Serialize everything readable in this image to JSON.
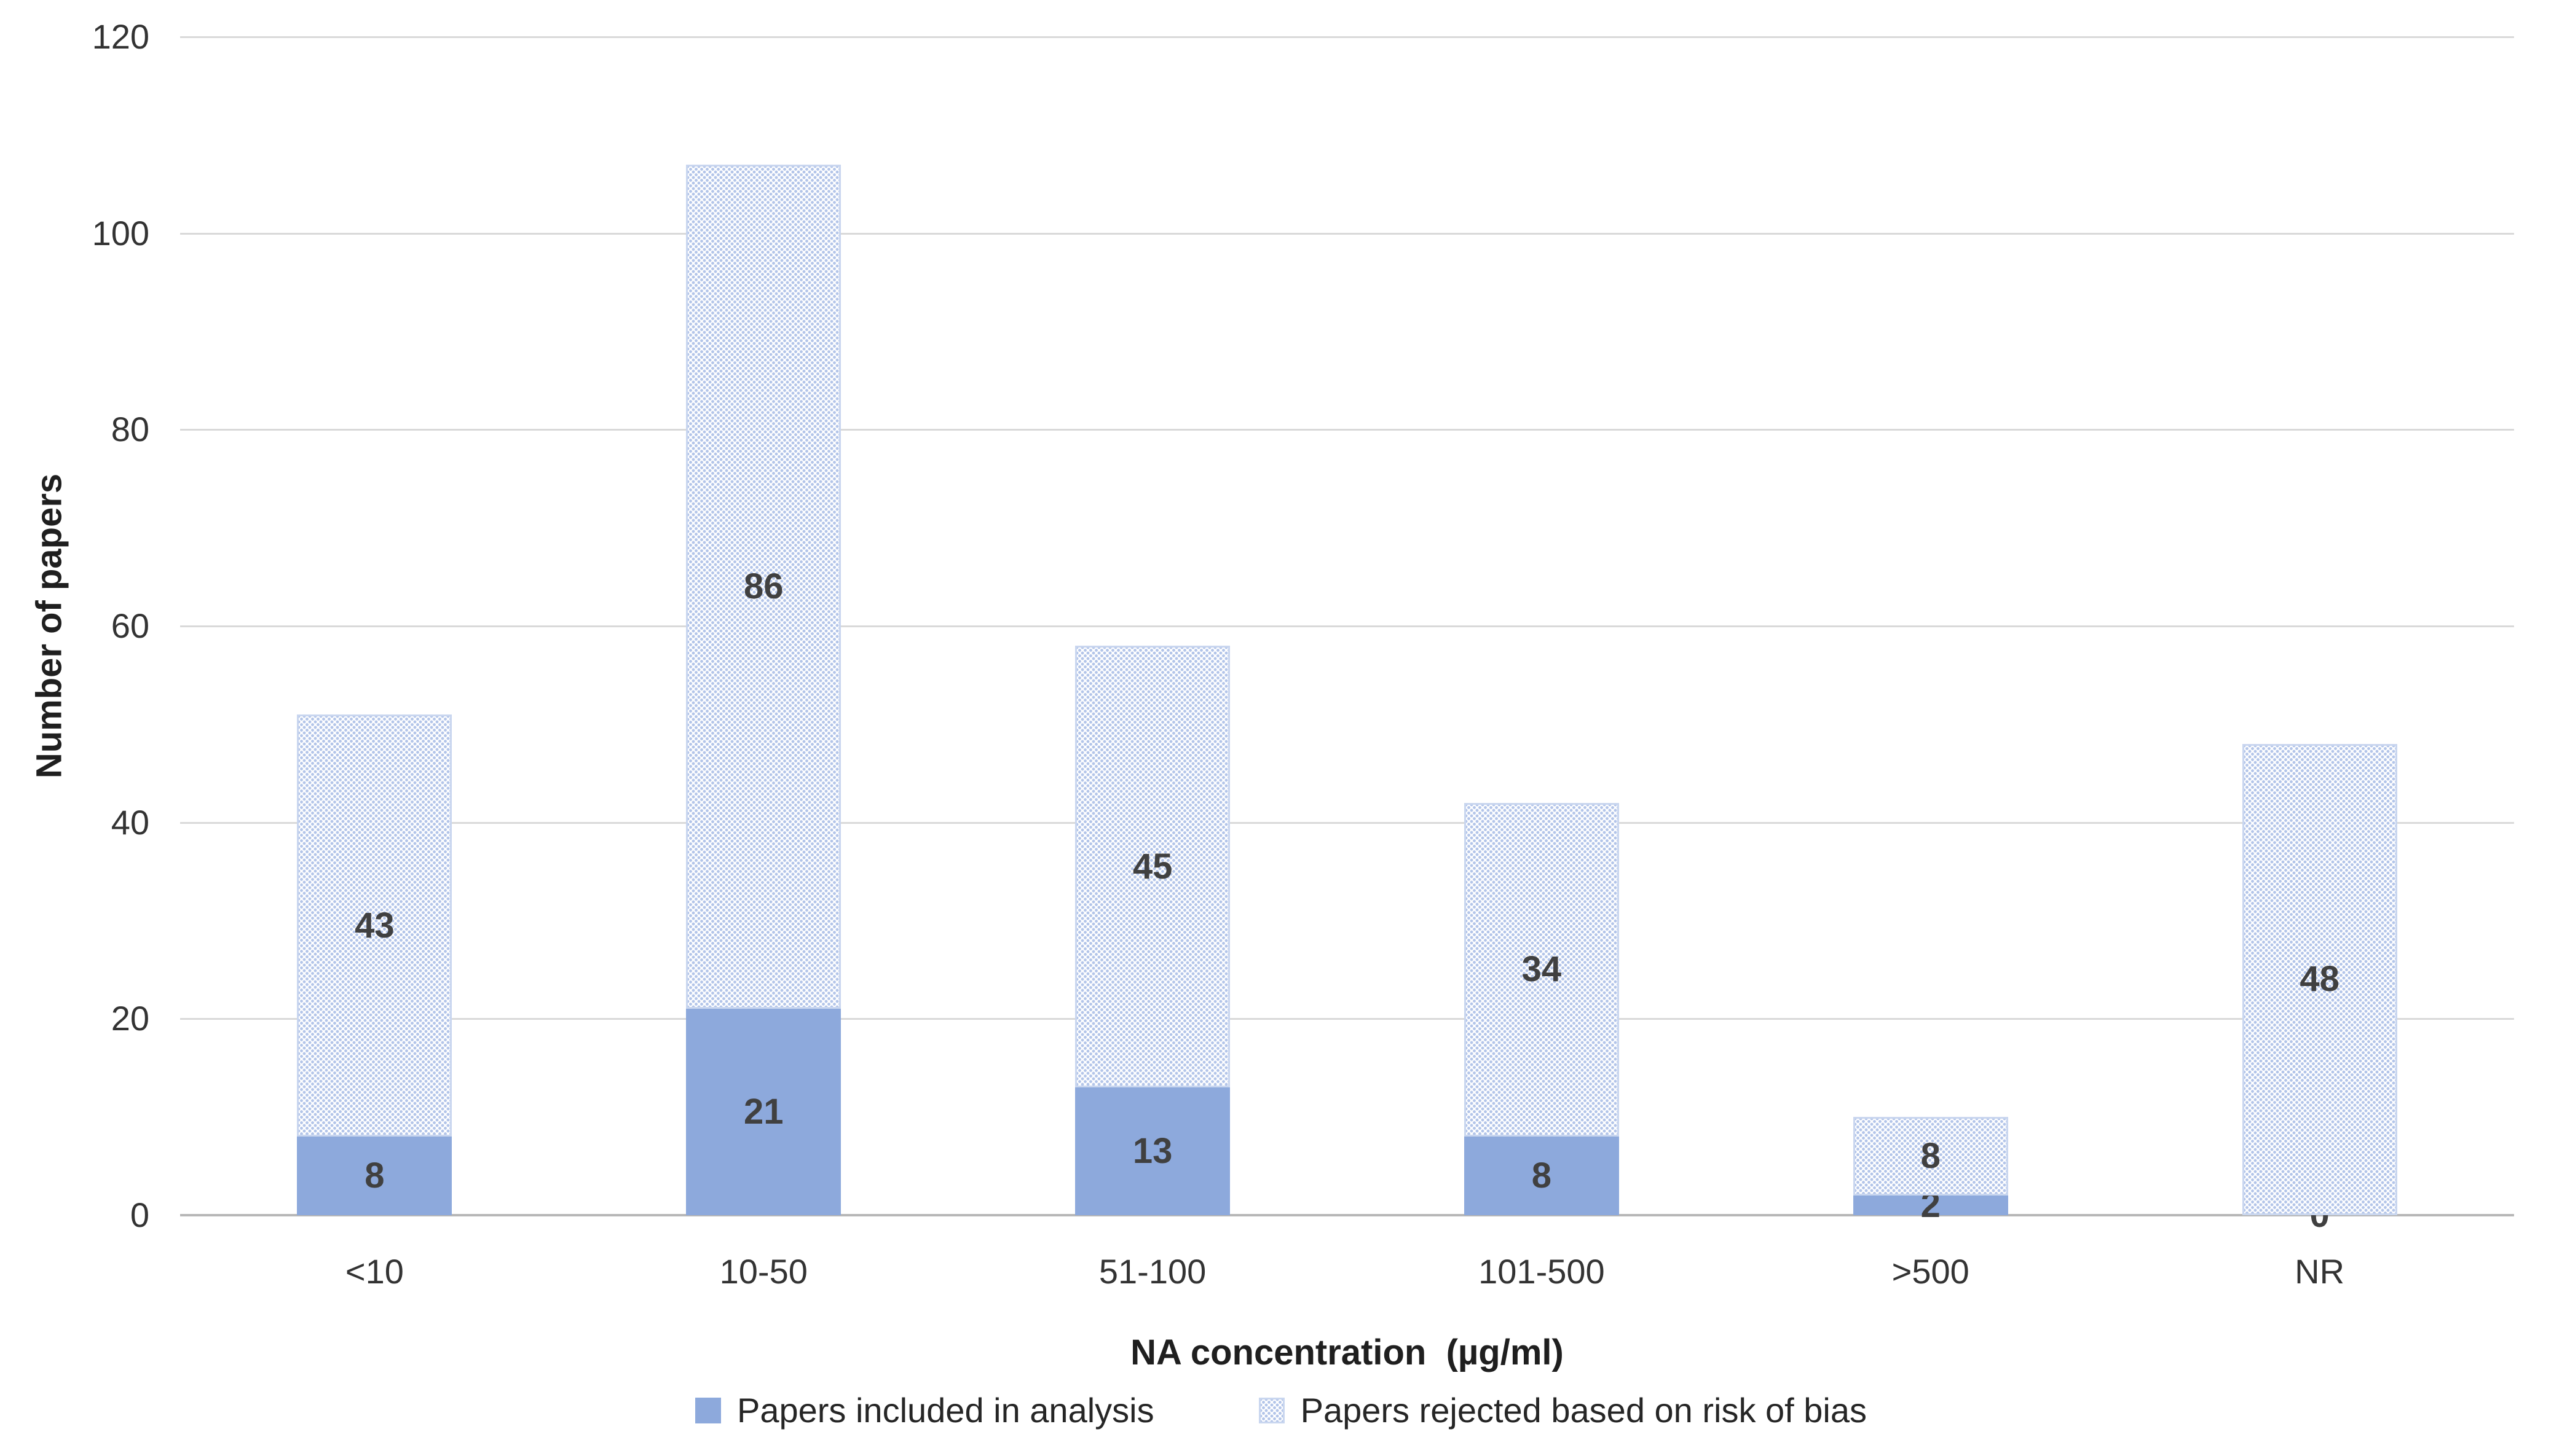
{
  "chart_data": {
    "type": "bar",
    "stacked": true,
    "categories": [
      "<10",
      "10-50",
      "51-100",
      "101-500",
      ">500",
      "NR"
    ],
    "series": [
      {
        "name": "Papers included in analysis",
        "style": "solid",
        "color": "#8da9dc",
        "values": [
          8,
          21,
          13,
          8,
          2,
          0
        ]
      },
      {
        "name": "Papers rejected based on risk of bias",
        "style": "dotted-pattern",
        "color": "#b3c5e9",
        "pattern_border": "#c9d6ef",
        "values": [
          43,
          86,
          45,
          34,
          8,
          48
        ]
      }
    ],
    "data_labels": {
      "included": [
        "8",
        "21",
        "13",
        "8",
        "2",
        "0"
      ],
      "rejected": [
        "43",
        "86",
        "45",
        "34",
        "8",
        "48"
      ]
    },
    "title": "",
    "xlabel": "NA concentration  (µg/ml)",
    "ylabel": "Number of papers",
    "ylim": [
      0,
      120
    ],
    "ytick_step": 20,
    "y_ticks": [
      "0",
      "20",
      "40",
      "60",
      "80",
      "100",
      "120"
    ],
    "grid": "horizontal",
    "legend_position": "bottom"
  },
  "colors": {
    "solid_fill": "#8da9dc",
    "pattern_dot": "#b3c5e9",
    "pattern_border": "#c9d6ef",
    "gridline": "#d9d9d9",
    "axis_line": "#b7b7b7",
    "tick_text": "#333333",
    "value_label_text": "#404040",
    "title_text": "#1f1f1f",
    "background": "#ffffff"
  }
}
